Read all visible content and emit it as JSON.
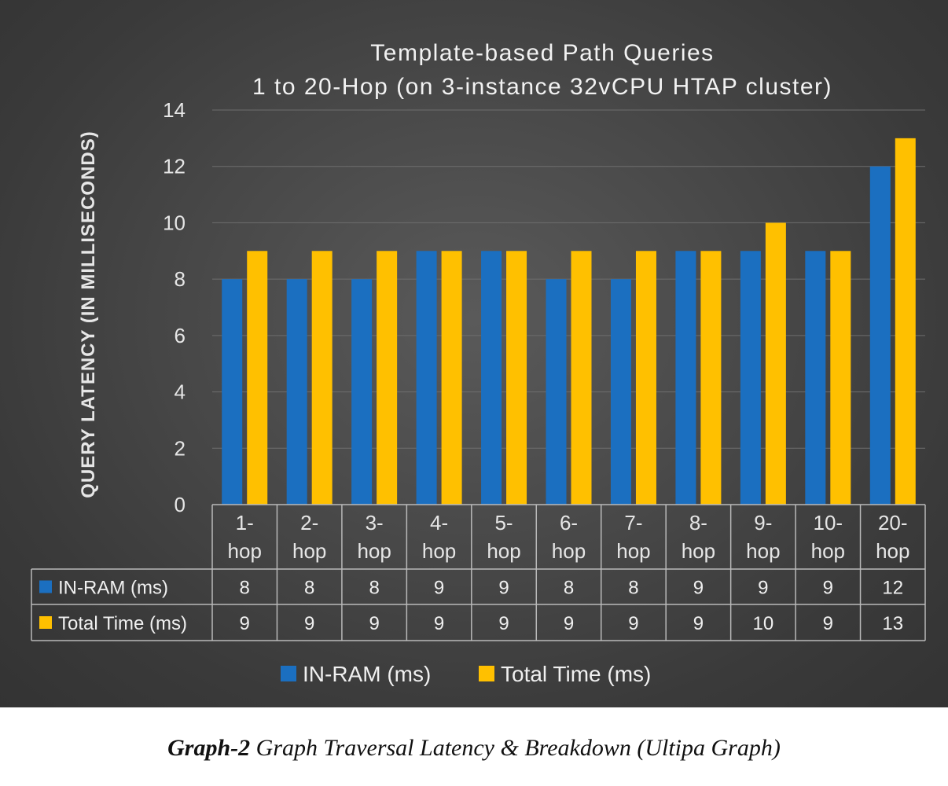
{
  "chart_data": {
    "type": "bar",
    "title": "Template-based Path Queries",
    "subtitle": "1 to 20-Hop (on 3-instance 32vCPU HTAP cluster)",
    "ylabel": "QUERY  LATENCY (IN MILLISECONDS)",
    "xlabel": "",
    "ylim": [
      0,
      14
    ],
    "yticks": [
      0,
      2,
      4,
      6,
      8,
      10,
      12,
      14
    ],
    "grid": true,
    "legend_position": "bottom",
    "data_table": true,
    "categories": [
      [
        "1-",
        "hop"
      ],
      [
        "2-",
        "hop"
      ],
      [
        "3-",
        "hop"
      ],
      [
        "4-",
        "hop"
      ],
      [
        "5-",
        "hop"
      ],
      [
        "6-",
        "hop"
      ],
      [
        "7-",
        "hop"
      ],
      [
        "8-",
        "hop"
      ],
      [
        "9-",
        "hop"
      ],
      [
        "10-",
        "hop"
      ],
      [
        "20-",
        "hop"
      ]
    ],
    "series": [
      {
        "name": "IN-RAM (ms)",
        "color": "#1b6fc0",
        "values": [
          8,
          8,
          8,
          9,
          9,
          8,
          8,
          9,
          9,
          9,
          12
        ]
      },
      {
        "name": "Total Time (ms)",
        "color": "#ffc000",
        "values": [
          9,
          9,
          9,
          9,
          9,
          9,
          9,
          9,
          10,
          9,
          13
        ]
      }
    ]
  },
  "caption": {
    "label": "Graph-2",
    "text": " Graph Traversal Latency & Breakdown (Ultipa Graph)"
  }
}
